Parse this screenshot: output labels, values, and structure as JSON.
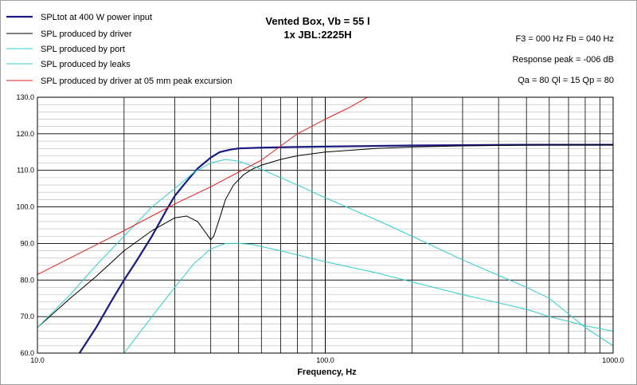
{
  "chart_data": {
    "type": "line",
    "title": "Vented Box, Vb = 55 l",
    "subtitle": "1x JBL:2225H",
    "xlabel": "Frequency, Hz",
    "ylabel": "",
    "x_scale": "log",
    "xlim": [
      10,
      1000
    ],
    "ylim": [
      60,
      130
    ],
    "grid": true,
    "legend_position": "top-left",
    "info": [
      "F3 = 000 Hz  Fb = 040 Hz",
      "Response peak = -006 dB",
      "Qa = 80  Ql = 15  Qp = 80"
    ],
    "y_ticks": [
      "60.0",
      "70.0",
      "80.0",
      "90.0",
      "100.0",
      "110.0",
      "120.0",
      "130.0"
    ],
    "x_ticks": [
      {
        "value": 10,
        "label": "10.0"
      },
      {
        "value": 100,
        "label": "100.0"
      },
      {
        "value": 1000,
        "label": "1000.0"
      }
    ],
    "series": [
      {
        "name": "SPLtot at 400 W power input",
        "color": "#1a1a80",
        "width": 2.2,
        "points": [
          [
            14,
            60
          ],
          [
            16,
            67
          ],
          [
            18,
            74
          ],
          [
            20,
            80
          ],
          [
            22,
            85
          ],
          [
            25,
            92
          ],
          [
            28,
            99
          ],
          [
            30,
            103
          ],
          [
            33,
            107
          ],
          [
            36,
            110.5
          ],
          [
            40,
            113.5
          ],
          [
            43,
            115
          ],
          [
            47,
            115.7
          ],
          [
            50,
            116
          ],
          [
            60,
            116.2
          ],
          [
            80,
            116.4
          ],
          [
            100,
            116.5
          ],
          [
            200,
            116.8
          ],
          [
            500,
            117
          ],
          [
            1000,
            117
          ]
        ]
      },
      {
        "name": "SPL produced by driver",
        "color": "#000000",
        "width": 1,
        "points": [
          [
            10,
            67
          ],
          [
            13,
            75
          ],
          [
            16,
            81
          ],
          [
            20,
            88
          ],
          [
            25,
            93.5
          ],
          [
            30,
            97
          ],
          [
            33,
            97.5
          ],
          [
            36,
            96
          ],
          [
            38,
            93.5
          ],
          [
            40,
            91
          ],
          [
            41,
            92
          ],
          [
            43,
            97
          ],
          [
            45,
            102
          ],
          [
            48,
            106
          ],
          [
            52,
            108.8
          ],
          [
            56,
            110.4
          ],
          [
            60,
            111.4
          ],
          [
            70,
            113
          ],
          [
            80,
            114
          ],
          [
            100,
            115
          ],
          [
            150,
            116
          ],
          [
            200,
            116.4
          ],
          [
            300,
            116.7
          ],
          [
            500,
            116.9
          ],
          [
            1000,
            117
          ]
        ]
      },
      {
        "name": "SPL produced by port",
        "color": "#33cccc",
        "width": 1,
        "points": [
          [
            10,
            67
          ],
          [
            13,
            76
          ],
          [
            16,
            84
          ],
          [
            20,
            92
          ],
          [
            25,
            100
          ],
          [
            30,
            105
          ],
          [
            35,
            109.5
          ],
          [
            40,
            112
          ],
          [
            45,
            113
          ],
          [
            50,
            112.5
          ],
          [
            60,
            110.3
          ],
          [
            80,
            106
          ],
          [
            100,
            102.5
          ],
          [
            150,
            96.5
          ],
          [
            200,
            92
          ],
          [
            300,
            85.5
          ],
          [
            500,
            78
          ],
          [
            600,
            75
          ],
          [
            800,
            67
          ],
          [
            1000,
            62
          ]
        ]
      },
      {
        "name": "SPL produced by leaks",
        "color": "#33cccc",
        "width": 1,
        "points": [
          [
            20,
            60
          ],
          [
            25,
            70
          ],
          [
            30,
            78
          ],
          [
            35,
            84.5
          ],
          [
            40,
            88.5
          ],
          [
            45,
            90
          ],
          [
            50,
            90
          ],
          [
            55,
            89.8
          ],
          [
            70,
            88
          ],
          [
            100,
            85
          ],
          [
            150,
            82
          ],
          [
            200,
            79.5
          ],
          [
            300,
            76
          ],
          [
            500,
            72
          ],
          [
            600,
            70
          ],
          [
            800,
            67.5
          ],
          [
            1000,
            66
          ]
        ]
      },
      {
        "name": "SPL produced by driver at 05 mm peak excursion",
        "color": "#dd2222",
        "width": 1,
        "points": [
          [
            10,
            81.5
          ],
          [
            20,
            93.5
          ],
          [
            30,
            100.8
          ],
          [
            40,
            105.5
          ],
          [
            60,
            112.8
          ],
          [
            80,
            120
          ],
          [
            100,
            124
          ],
          [
            120,
            127
          ],
          [
            140,
            130
          ]
        ]
      }
    ]
  }
}
